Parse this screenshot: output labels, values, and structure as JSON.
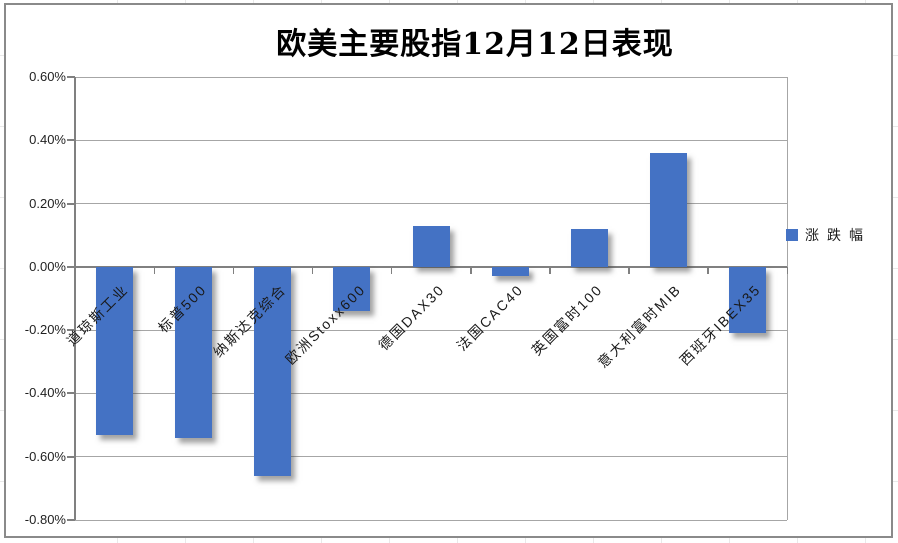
{
  "chart": {
    "title": "欧美主要股指12月12日表现",
    "legend": {
      "label": "涨跌幅"
    }
  },
  "chart_data": {
    "type": "bar",
    "title": "欧美主要股指12月12日表现",
    "categories": [
      "道琼斯工业",
      "标普500",
      "纳斯达克综合",
      "欧洲Stoxx600",
      "德国DAX30",
      "法国CAC40",
      "英国富时100",
      "意大利富时MIB",
      "西班牙IBEX35"
    ],
    "series": [
      {
        "name": "涨跌幅",
        "values": [
          -0.53,
          -0.54,
          -0.66,
          -0.14,
          0.13,
          -0.03,
          0.12,
          0.36,
          -0.21
        ]
      }
    ],
    "value_unit": "percent",
    "ylim": [
      -0.8,
      0.6
    ],
    "ytick_step": 0.2,
    "ytick_labels": [
      "0.60%",
      "0.40%",
      "0.20%",
      "0.00%",
      "-0.20%",
      "-0.40%",
      "-0.60%",
      "-0.80%"
    ],
    "grid": true,
    "legend_position": "right",
    "colors": {
      "bar": "#4472C4",
      "gridline": "#A6A6A6",
      "axis": "#808080",
      "chart_border": "#8A8A8A",
      "text": "#1F1F1F"
    }
  }
}
